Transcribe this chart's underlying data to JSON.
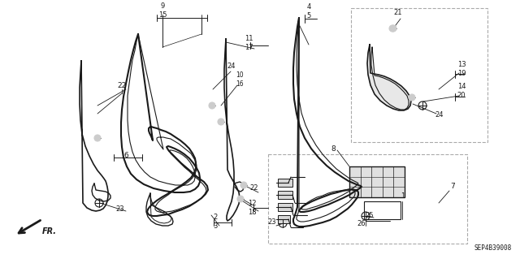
{
  "bg_color": "#ffffff",
  "line_color": "#1a1a1a",
  "gray_color": "#888888",
  "light_gray": "#999999",
  "diagram_id": "SEP4B39008",
  "fig_w": 6.4,
  "fig_h": 3.19,
  "dpi": 100
}
